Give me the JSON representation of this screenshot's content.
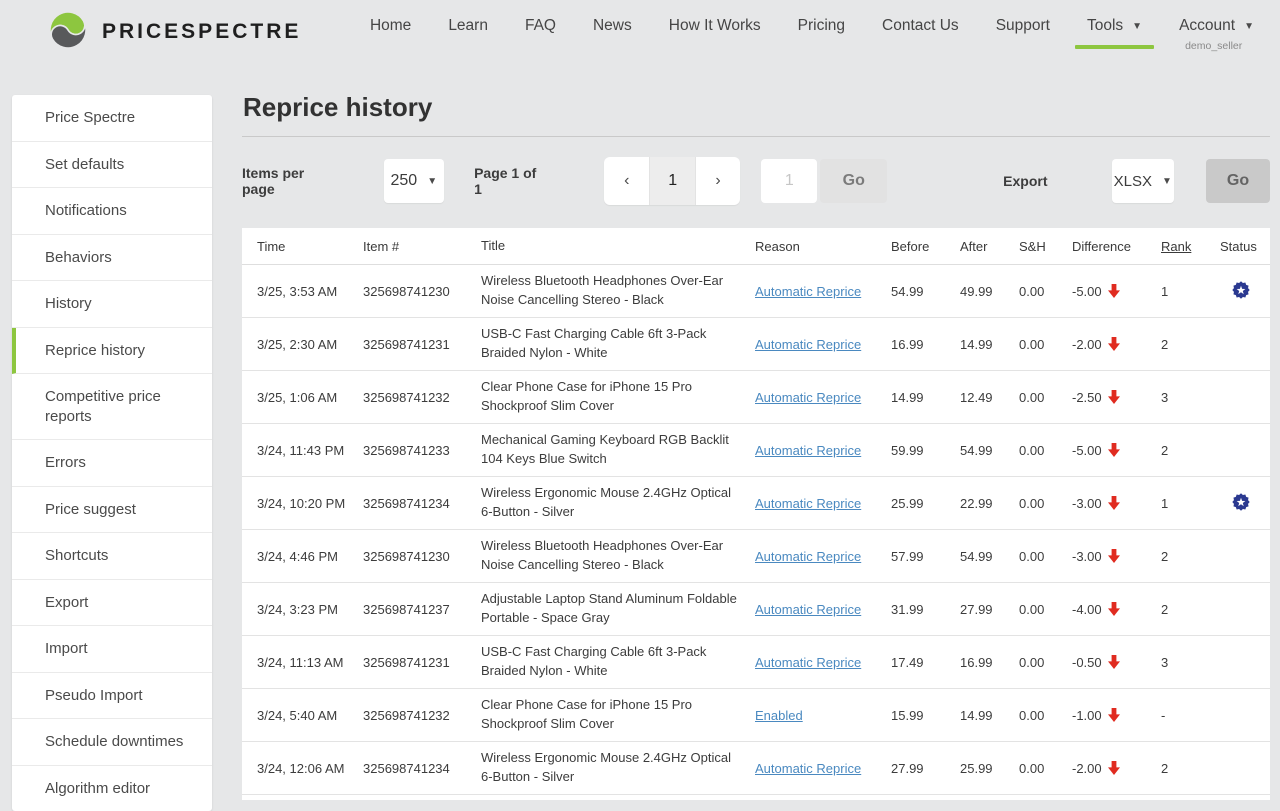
{
  "brand": {
    "name": "PRICESPECTRE"
  },
  "nav": {
    "items": [
      {
        "label": "Home"
      },
      {
        "label": "Learn"
      },
      {
        "label": "FAQ"
      },
      {
        "label": "News"
      },
      {
        "label": "How It Works"
      },
      {
        "label": "Pricing"
      },
      {
        "label": "Contact Us"
      },
      {
        "label": "Support"
      },
      {
        "label": "Tools",
        "caret": true,
        "active": true
      },
      {
        "label": "Account",
        "caret": true,
        "sub": "demo_seller"
      }
    ]
  },
  "sidebar": {
    "items": [
      {
        "label": "Price Spectre"
      },
      {
        "label": "Set defaults"
      },
      {
        "label": "Notifications"
      },
      {
        "label": "Behaviors"
      },
      {
        "label": "History"
      },
      {
        "label": "Reprice history",
        "active": true
      },
      {
        "label": "Competitive price reports"
      },
      {
        "label": "Errors"
      },
      {
        "label": "Price suggest"
      },
      {
        "label": "Shortcuts"
      },
      {
        "label": "Export"
      },
      {
        "label": "Import"
      },
      {
        "label": "Pseudo Import"
      },
      {
        "label": "Schedule downtimes"
      },
      {
        "label": "Algorithm editor"
      }
    ]
  },
  "page": {
    "title": "Reprice history"
  },
  "controls": {
    "items_per_page_label": "Items per page",
    "items_per_page_value": "250",
    "page_info": "Page 1 of 1",
    "prev_icon": "‹",
    "current_page": "1",
    "next_icon": "›",
    "page_input_placeholder": "1",
    "go_label": "Go",
    "export_label": "Export",
    "export_format": "XLSX",
    "export_go_label": "Go"
  },
  "table": {
    "headers": [
      "Time",
      "Item #",
      "Title",
      "Reason",
      "Before",
      "After",
      "S&H",
      "Difference",
      "Rank",
      "Status"
    ],
    "rows": [
      {
        "time": "3/25, 3:53 AM",
        "item": "325698741230",
        "title": "Wireless Bluetooth Headphones Over-Ear Noise Cancelling Stereo - Black",
        "reason": "Automatic Reprice",
        "before": "54.99",
        "after": "49.99",
        "sh": "0.00",
        "difference": "-5.00",
        "rank": "1",
        "badge": true
      },
      {
        "time": "3/25, 2:30 AM",
        "item": "325698741231",
        "title": "USB-C Fast Charging Cable 6ft 3-Pack Braided Nylon - White",
        "reason": "Automatic Reprice",
        "before": "16.99",
        "after": "14.99",
        "sh": "0.00",
        "difference": "-2.00",
        "rank": "2",
        "badge": false
      },
      {
        "time": "3/25, 1:06 AM",
        "item": "325698741232",
        "title": "Clear Phone Case for iPhone 15 Pro Shockproof Slim Cover",
        "reason": "Automatic Reprice",
        "before": "14.99",
        "after": "12.49",
        "sh": "0.00",
        "difference": "-2.50",
        "rank": "3",
        "badge": false
      },
      {
        "time": "3/24, 11:43 PM",
        "item": "325698741233",
        "title": "Mechanical Gaming Keyboard RGB Backlit 104 Keys Blue Switch",
        "reason": "Automatic Reprice",
        "before": "59.99",
        "after": "54.99",
        "sh": "0.00",
        "difference": "-5.00",
        "rank": "2",
        "badge": false
      },
      {
        "time": "3/24, 10:20 PM",
        "item": "325698741234",
        "title": "Wireless Ergonomic Mouse 2.4GHz Optical 6-Button - Silver",
        "reason": "Automatic Reprice",
        "before": "25.99",
        "after": "22.99",
        "sh": "0.00",
        "difference": "-3.00",
        "rank": "1",
        "badge": true
      },
      {
        "time": "3/24, 4:46 PM",
        "item": "325698741230",
        "title": "Wireless Bluetooth Headphones Over-Ear Noise Cancelling Stereo - Black",
        "reason": "Automatic Reprice",
        "before": "57.99",
        "after": "54.99",
        "sh": "0.00",
        "difference": "-3.00",
        "rank": "2",
        "badge": false
      },
      {
        "time": "3/24, 3:23 PM",
        "item": "325698741237",
        "title": "Adjustable Laptop Stand Aluminum Foldable Portable - Space Gray",
        "reason": "Automatic Reprice",
        "before": "31.99",
        "after": "27.99",
        "sh": "0.00",
        "difference": "-4.00",
        "rank": "2",
        "badge": false
      },
      {
        "time": "3/24, 11:13 AM",
        "item": "325698741231",
        "title": "USB-C Fast Charging Cable 6ft 3-Pack Braided Nylon - White",
        "reason": "Automatic Reprice",
        "before": "17.49",
        "after": "16.99",
        "sh": "0.00",
        "difference": "-0.50",
        "rank": "3",
        "badge": false
      },
      {
        "time": "3/24, 5:40 AM",
        "item": "325698741232",
        "title": "Clear Phone Case for iPhone 15 Pro Shockproof Slim Cover",
        "reason": "Enabled",
        "before": "15.99",
        "after": "14.99",
        "sh": "0.00",
        "difference": "-1.00",
        "rank": "-",
        "badge": false
      },
      {
        "time": "3/24, 12:06 AM",
        "item": "325698741234",
        "title": "Wireless Ergonomic Mouse 2.4GHz Optical 6-Button - Silver",
        "reason": "Automatic Reprice",
        "before": "27.99",
        "after": "25.99",
        "sh": "0.00",
        "difference": "-2.00",
        "rank": "2",
        "badge": false
      }
    ]
  },
  "colors": {
    "accent_green": "#8dc63f",
    "logo_gray": "#58595b",
    "link_blue": "#4a89c0",
    "negative_red": "#e02b20",
    "badge_navy": "#2b3990"
  }
}
